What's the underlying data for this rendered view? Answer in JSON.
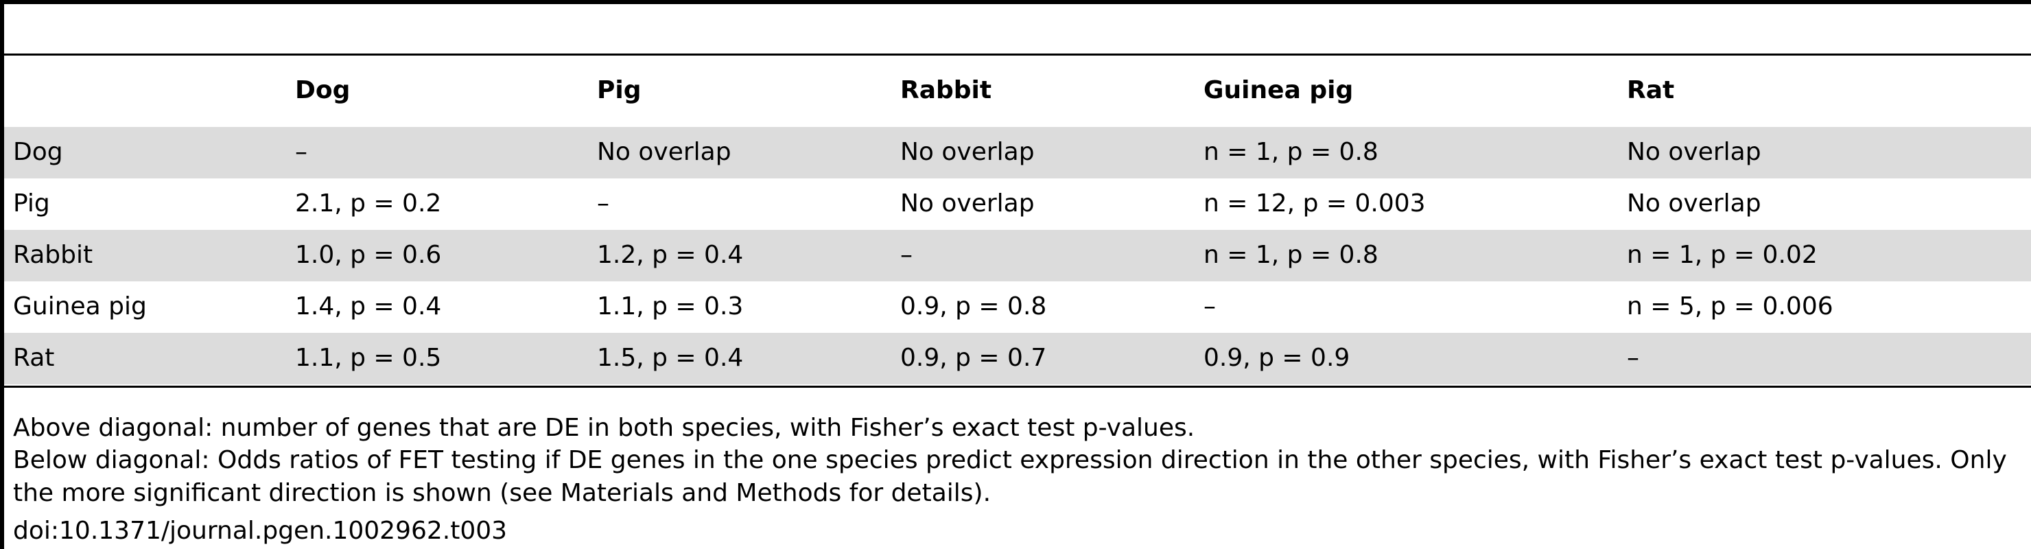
{
  "table": {
    "columns": [
      "Dog",
      "Pig",
      "Rabbit",
      "Guinea pig",
      "Rat"
    ],
    "rows": [
      [
        "Dog",
        "–",
        "No overlap",
        "No overlap",
        "n = 1, p = 0.8",
        "No overlap"
      ],
      [
        "Pig",
        "2.1, p = 0.2",
        "–",
        "No overlap",
        "n = 12, p = 0.003",
        "No overlap"
      ],
      [
        "Rabbit",
        "1.0, p = 0.6",
        "1.2, p = 0.4",
        "–",
        "n = 1, p = 0.8",
        "n = 1, p = 0.02"
      ],
      [
        "Guinea pig",
        "1.4, p = 0.4",
        "1.1, p = 0.3",
        "0.9, p = 0.8",
        "–",
        "n = 5, p = 0.006"
      ],
      [
        "Rat",
        "1.1, p = 0.5",
        "1.5, p = 0.4",
        "0.9, p = 0.7",
        "0.9, p = 0.9",
        "–"
      ]
    ]
  },
  "notes": [
    "Above diagonal: number of genes that are DE in both species, with Fisher’s exact test p-values.",
    "Below diagonal: Odds ratios of FET testing if DE genes in the one species predict expression direction in the other species, with Fisher’s exact test p-values. Only the more significant direction is shown (see Materials and Methods for details).",
    "doi:10.1371/journal.pgen.1002962.t003"
  ]
}
